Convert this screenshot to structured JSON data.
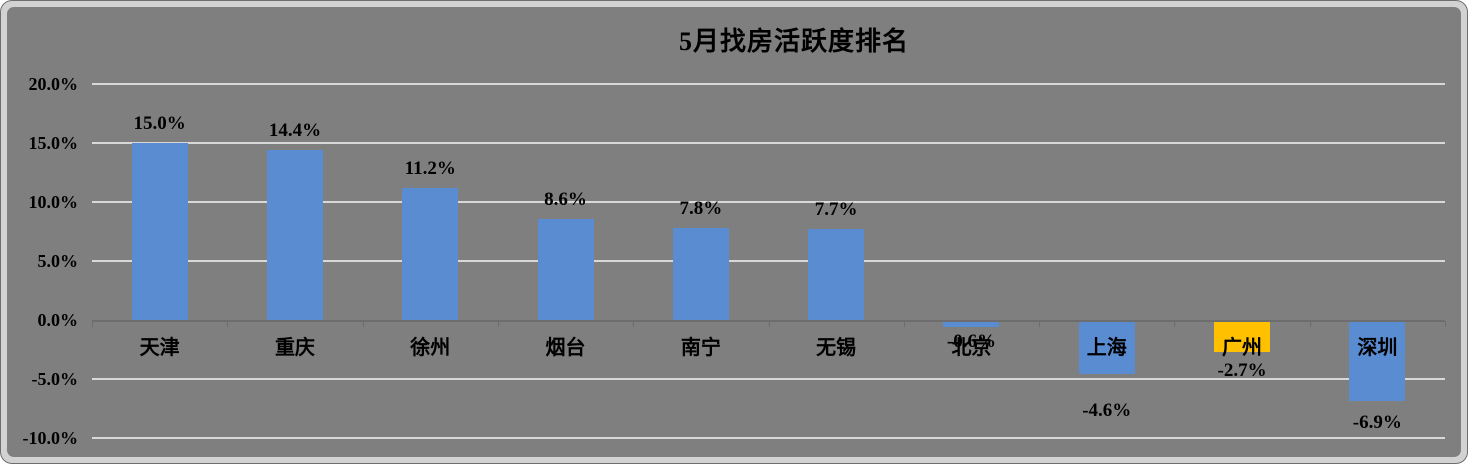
{
  "window": {
    "background_color": "#7f7f7f",
    "frame_border_color": "#d2d2d2"
  },
  "chart_data": {
    "type": "bar",
    "title": "5月找房活跃度排名",
    "categories": [
      "天津",
      "重庆",
      "徐州",
      "烟台",
      "南宁",
      "无锡",
      "北京",
      "上海",
      "广州",
      "深圳"
    ],
    "values": [
      15.0,
      14.4,
      11.2,
      8.6,
      7.8,
      7.7,
      -0.6,
      -4.6,
      -2.7,
      -6.9
    ],
    "value_labels": [
      "15.0%",
      "14.4%",
      "11.2%",
      "8.6%",
      "7.8%",
      "7.7%",
      "-0.6%",
      "-4.6%",
      "-2.7%",
      "-6.9%"
    ],
    "bar_colors": [
      "#5a8cd2",
      "#5a8cd2",
      "#5a8cd2",
      "#5a8cd2",
      "#5a8cd2",
      "#5a8cd2",
      "#5a8cd2",
      "#5a8cd2",
      "#ffc000",
      "#5a8cd2"
    ],
    "xlabel": "",
    "ylabel": "",
    "ylim": [
      -10,
      20
    ],
    "ytick_values": [
      20,
      15,
      10,
      5,
      0,
      -5,
      -10
    ],
    "ytick_labels": [
      "20.0%",
      "15.0%",
      "10.0%",
      "5.0%",
      "0.0%",
      "-5.0%",
      "-10.0%"
    ],
    "grid": true,
    "legend": false,
    "colors": {
      "bar_default": "#5a8cd2",
      "bar_highlight": "#ffc000",
      "background": "#7f7f7f",
      "gridline": "#d8d8d8",
      "zero_axis": "#6d6d6d",
      "text": "#000000"
    }
  }
}
